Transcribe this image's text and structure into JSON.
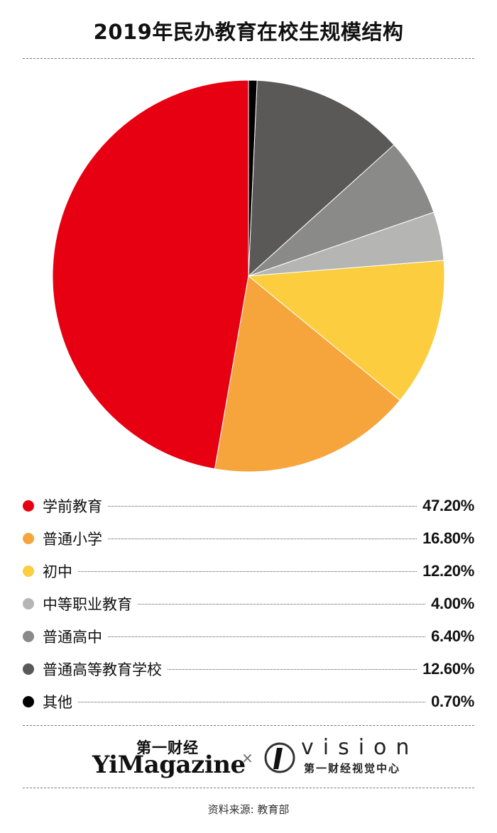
{
  "title": "2019年民办教育在校生规模结构",
  "chart_data": {
    "type": "pie",
    "title": "2019年民办教育在校生规模结构",
    "slices": [
      {
        "label": "学前教育",
        "value": 47.2,
        "display": "47.20%",
        "color": "#e60012"
      },
      {
        "label": "普通小学",
        "value": 16.8,
        "display": "16.80%",
        "color": "#f5a53c"
      },
      {
        "label": "初中",
        "value": 12.2,
        "display": "12.20%",
        "color": "#fbcd3f"
      },
      {
        "label": "中等职业教育",
        "value": 4.0,
        "display": "4.00%",
        "color": "#b5b5b3"
      },
      {
        "label": "普通高中",
        "value": 6.4,
        "display": "6.40%",
        "color": "#8a8a88"
      },
      {
        "label": "普通高等教育学校",
        "value": 12.6,
        "display": "12.60%",
        "color": "#5a5957"
      },
      {
        "label": "其他",
        "value": 0.7,
        "display": "0.70%",
        "color": "#000000"
      }
    ]
  },
  "brand": {
    "cn": "第一财经",
    "en": "YiMagazine",
    "separator": "×",
    "vision": "vision",
    "vision_cn": "第一财经视觉中心"
  },
  "source": "资料来源: 教育部"
}
